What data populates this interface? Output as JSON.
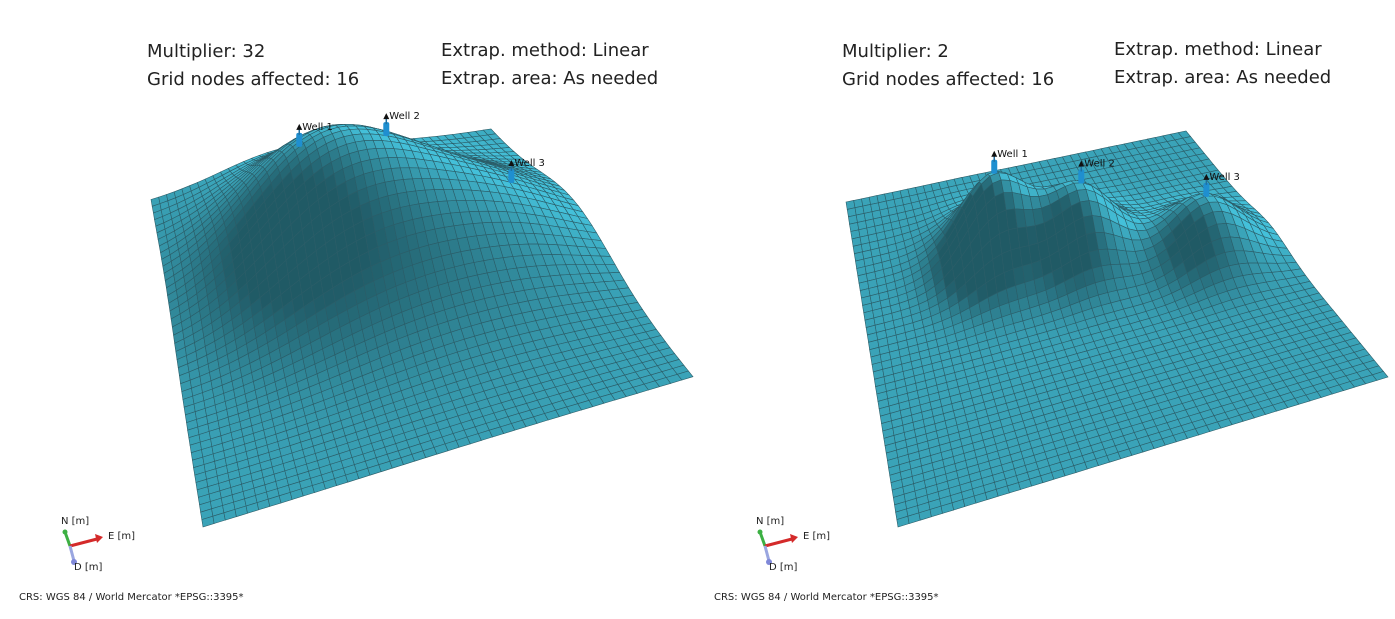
{
  "panels": [
    {
      "multiplier": "Multiplier: 32",
      "grid_nodes": "Grid nodes affected: 16",
      "extrap_method": "Extrap. method: Linear",
      "extrap_area": "Extrap. area: As needed",
      "wells": [
        "Well 1",
        "Well 2",
        "Well 3"
      ],
      "axes": {
        "north": "N [m]",
        "east": "E [m]",
        "down": "D [m]"
      },
      "crs": "CRS: WGS 84 / World Mercator *EPSG::3395*"
    },
    {
      "multiplier": "Multiplier: 2",
      "grid_nodes": "Grid nodes affected: 16",
      "extrap_method": "Extrap. method: Linear",
      "extrap_area": "Extrap. area: As needed",
      "wells": [
        "Well 1",
        "Well 2",
        "Well 3"
      ],
      "axes": {
        "north": "N [m]",
        "east": "E [m]",
        "down": "D [m]"
      },
      "crs": "CRS: WGS 84 / World Mercator *EPSG::3395*"
    }
  ]
}
